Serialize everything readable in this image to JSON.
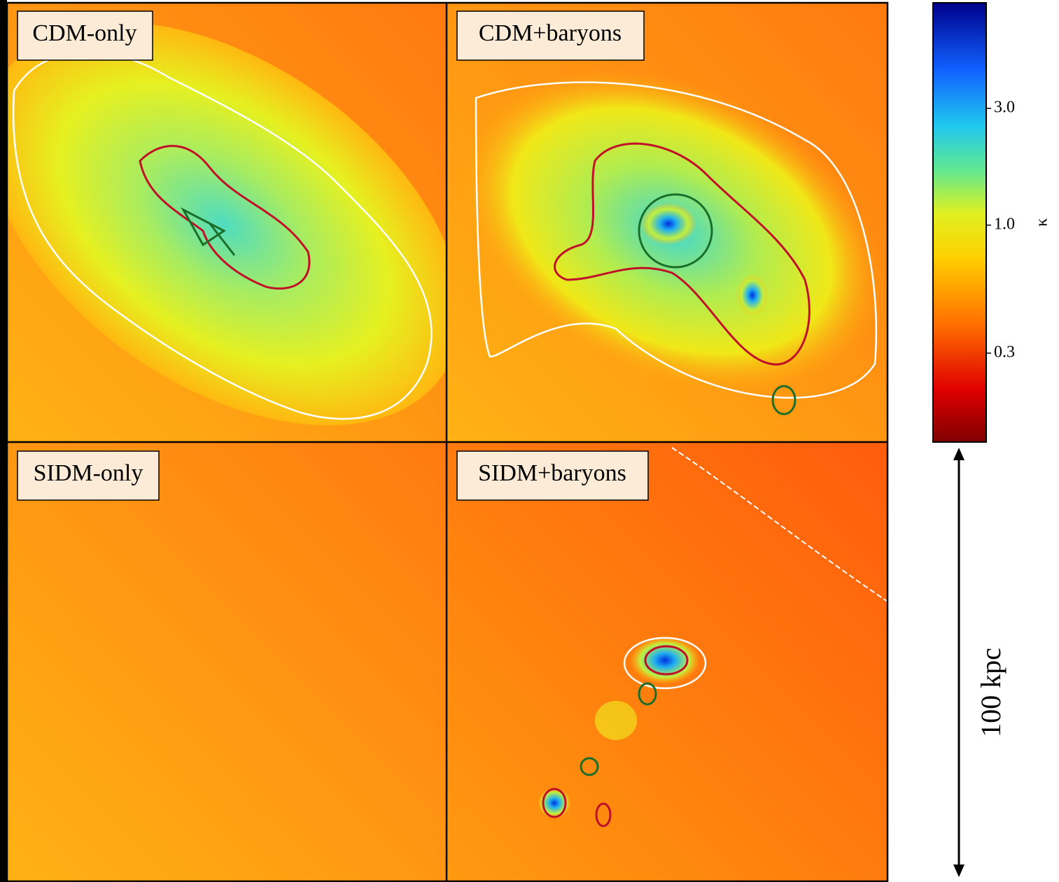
{
  "panels": [
    {
      "label": "CDM-only"
    },
    {
      "label": "CDM+baryons"
    },
    {
      "label": "SIDM-only"
    },
    {
      "label": "SIDM+baryons"
    }
  ],
  "colorbar": {
    "label": "κ",
    "scale": "log",
    "lim": [
      0.13,
      8.1
    ],
    "ticks": [
      {
        "value": 3,
        "label": "3.0"
      },
      {
        "value": 1,
        "label": "1.0"
      },
      0.3
    ]
  },
  "scale_bar": {
    "label": "100 kpc"
  }
}
